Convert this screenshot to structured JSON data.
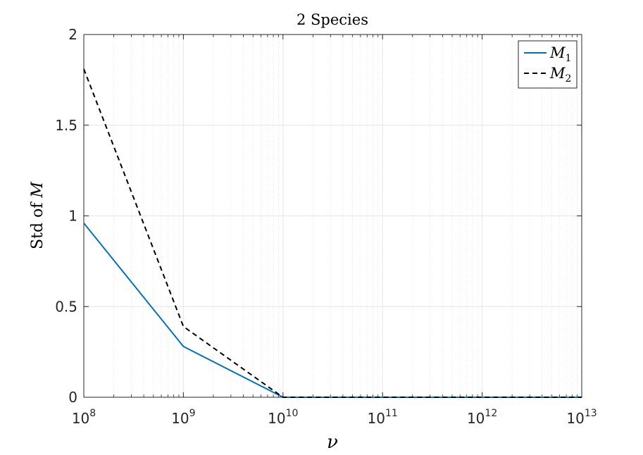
{
  "chart_data": {
    "type": "line",
    "title": "2 Species",
    "xlabel": "ν",
    "ylabel_text": "Std of ",
    "ylabel_var": "M",
    "xscale": "log",
    "xlim_exponents": [
      8,
      13
    ],
    "x_tick_exponents": [
      8,
      9,
      10,
      11,
      12,
      13
    ],
    "x_tick_base": "10",
    "x_tick_sups": [
      "8",
      "9",
      "10",
      "11",
      "12",
      "13"
    ],
    "ylim": [
      0,
      2
    ],
    "y_ticks": [
      0,
      0.5,
      1,
      1.5,
      2
    ],
    "y_tick_labels": [
      "0",
      "0.5",
      "1",
      "1.5",
      "2"
    ],
    "grid": true,
    "legend_position": "top-right",
    "x": [
      100000000.0,
      1000000000.0,
      10000000000.0,
      100000000000.0,
      1000000000000.0,
      10000000000000.0
    ],
    "series": [
      {
        "name": "M",
        "subscript": "1",
        "values": [
          0.96,
          0.28,
          0.0,
          0.0,
          0.0,
          0.0
        ],
        "color": "#0072BD",
        "style": "solid"
      },
      {
        "name": "M",
        "subscript": "2",
        "values": [
          1.81,
          0.39,
          0.0,
          0.0,
          0.0,
          0.0
        ],
        "color": "#000000",
        "style": "dashed"
      }
    ]
  }
}
